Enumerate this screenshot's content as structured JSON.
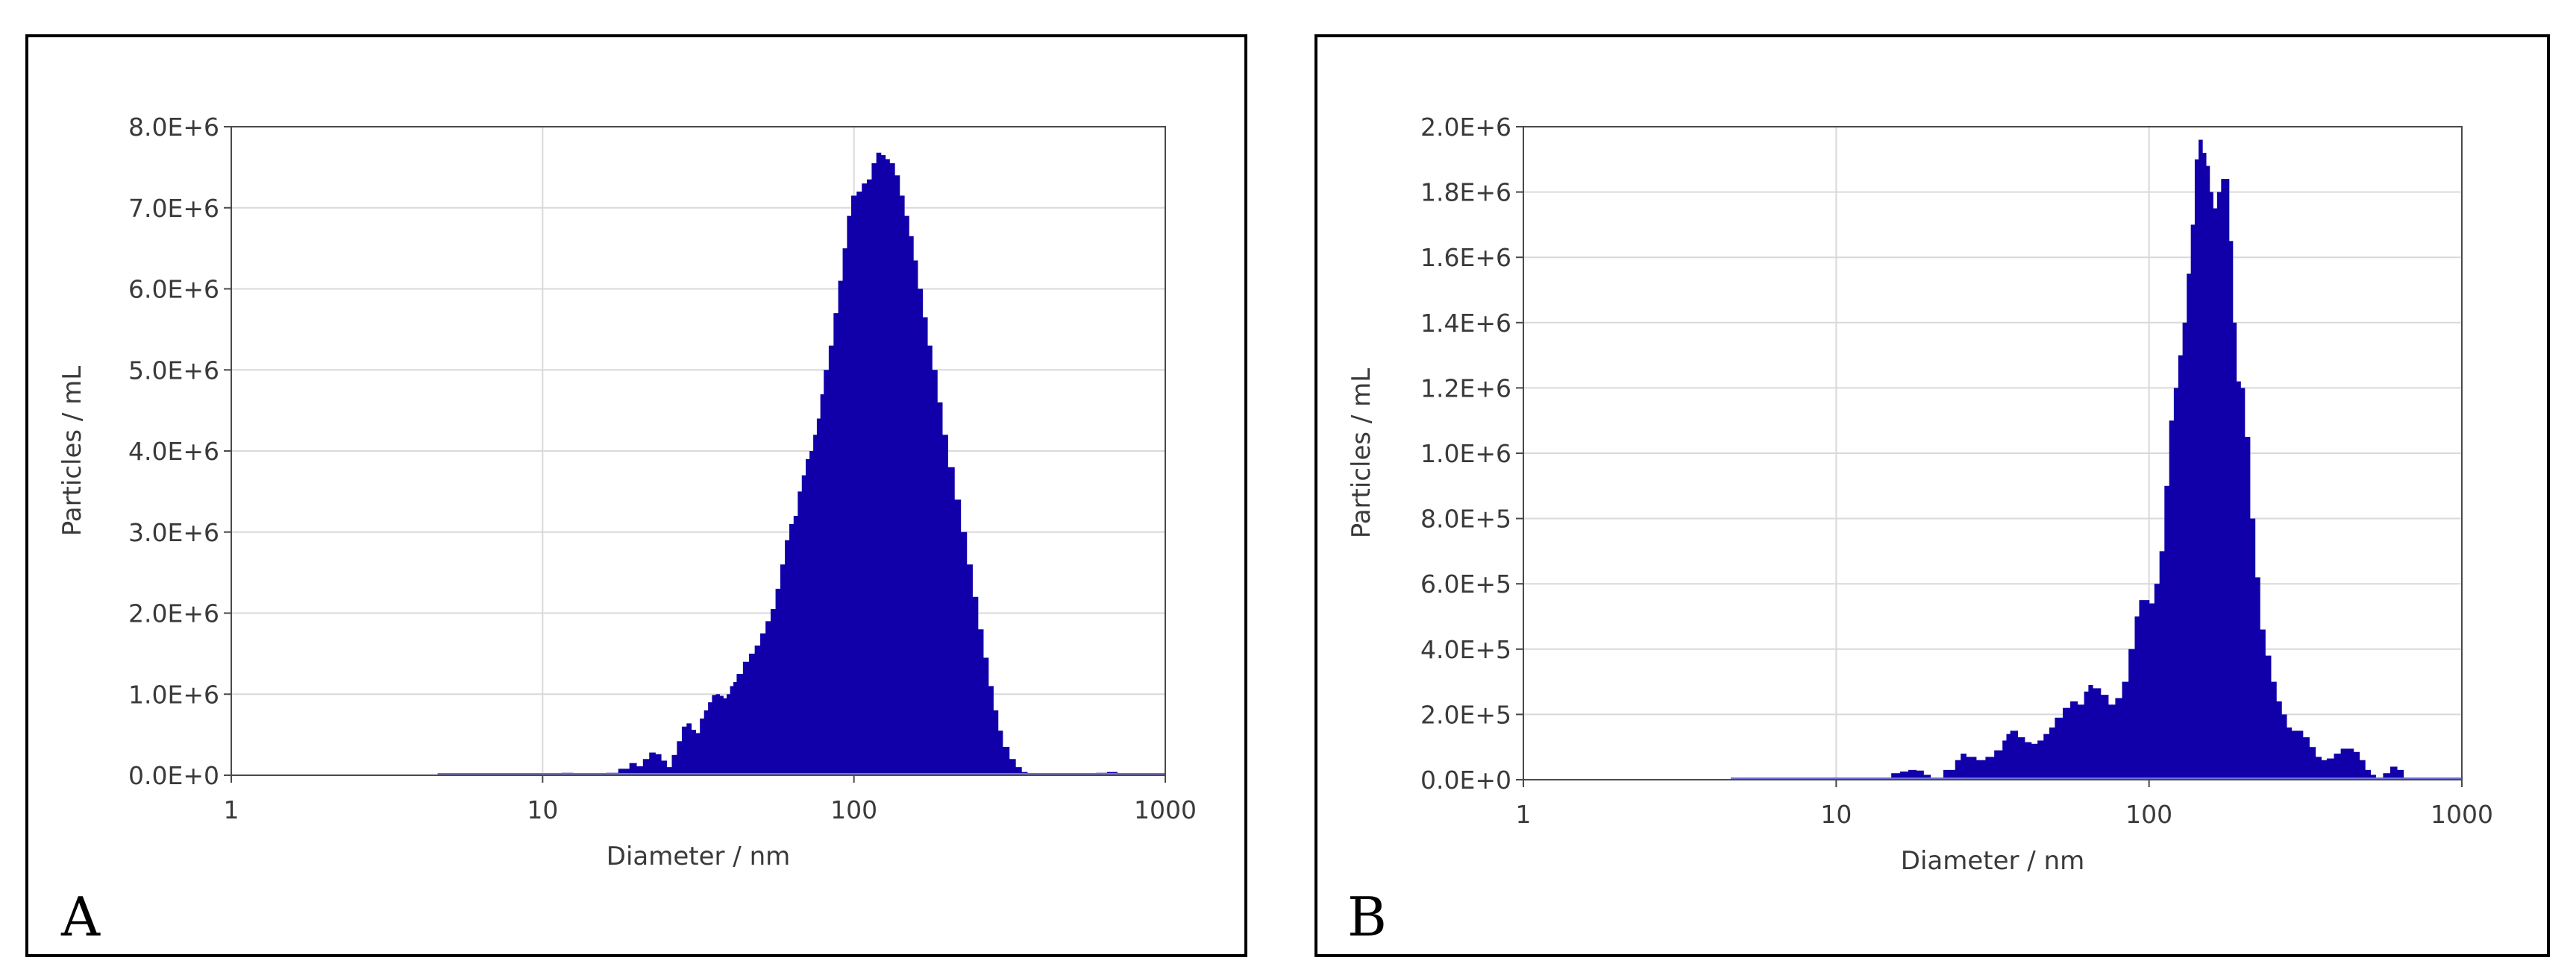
{
  "panels": [
    {
      "letter": "A"
    },
    {
      "letter": "B"
    }
  ],
  "colors": {
    "bar": "#1100aa",
    "baseline": "#6f6fd6",
    "ylabel": "#7a4a2a",
    "grid": "#d9d9d9"
  },
  "chart_data": [
    {
      "type": "bar",
      "title": "",
      "xlabel": "Diameter / nm",
      "ylabel": "Particles / mL",
      "xscale": "log",
      "xlim": [
        1,
        1000
      ],
      "ylim": [
        0,
        8000000
      ],
      "xticks": [
        "1",
        "10",
        "100",
        "1000"
      ],
      "yticks": [
        "0.0E+0",
        "1.0E+6",
        "2.0E+6",
        "3.0E+6",
        "4.0E+6",
        "5.0E+6",
        "6.0E+6",
        "7.0E+6",
        "8.0E+6"
      ],
      "grid": true,
      "baseline_range": [
        4.6,
        1000
      ],
      "series": [
        {
          "points": [
            [
              10.5,
              0
            ],
            [
              11.5,
              30000
            ],
            [
              12.5,
              15000
            ],
            [
              14,
              0
            ],
            [
              16,
              30000
            ],
            [
              17.5,
              80000
            ],
            [
              19,
              150000
            ],
            [
              20,
              110000
            ],
            [
              21,
              200000
            ],
            [
              22,
              280000
            ],
            [
              23,
              260000
            ],
            [
              24,
              180000
            ],
            [
              25,
              100000
            ],
            [
              26,
              250000
            ],
            [
              27,
              420000
            ],
            [
              28,
              600000
            ],
            [
              29,
              640000
            ],
            [
              30,
              560000
            ],
            [
              31,
              520000
            ],
            [
              32,
              700000
            ],
            [
              33,
              800000
            ],
            [
              34,
              900000
            ],
            [
              35,
              990000
            ],
            [
              36,
              1000000
            ],
            [
              37,
              980000
            ],
            [
              38,
              950000
            ],
            [
              39,
              1000000
            ],
            [
              40,
              1100000
            ],
            [
              41,
              1150000
            ],
            [
              42,
              1250000
            ],
            [
              44,
              1400000
            ],
            [
              46,
              1500000
            ],
            [
              48,
              1600000
            ],
            [
              50,
              1750000
            ],
            [
              52,
              1900000
            ],
            [
              54,
              2050000
            ],
            [
              56,
              2300000
            ],
            [
              58,
              2600000
            ],
            [
              60,
              2900000
            ],
            [
              62,
              3100000
            ],
            [
              64,
              3200000
            ],
            [
              66,
              3500000
            ],
            [
              68,
              3700000
            ],
            [
              70,
              3900000
            ],
            [
              72,
              4000000
            ],
            [
              74,
              4200000
            ],
            [
              76,
              4400000
            ],
            [
              78,
              4700000
            ],
            [
              80,
              5000000
            ],
            [
              83,
              5300000
            ],
            [
              86,
              5700000
            ],
            [
              89,
              6100000
            ],
            [
              92,
              6500000
            ],
            [
              95,
              6900000
            ],
            [
              98,
              7150000
            ],
            [
              102,
              7200000
            ],
            [
              106,
              7300000
            ],
            [
              110,
              7350000
            ],
            [
              114,
              7550000
            ],
            [
              118,
              7680000
            ],
            [
              122,
              7650000
            ],
            [
              126,
              7600000
            ],
            [
              130,
              7550000
            ],
            [
              135,
              7400000
            ],
            [
              140,
              7150000
            ],
            [
              145,
              6900000
            ],
            [
              150,
              6650000
            ],
            [
              155,
              6350000
            ],
            [
              160,
              6000000
            ],
            [
              166,
              5650000
            ],
            [
              172,
              5300000
            ],
            [
              178,
              5000000
            ],
            [
              185,
              4600000
            ],
            [
              192,
              4200000
            ],
            [
              200,
              3800000
            ],
            [
              210,
              3400000
            ],
            [
              220,
              3000000
            ],
            [
              230,
              2600000
            ],
            [
              240,
              2200000
            ],
            [
              250,
              1800000
            ],
            [
              260,
              1450000
            ],
            [
              270,
              1100000
            ],
            [
              280,
              800000
            ],
            [
              290,
              550000
            ],
            [
              300,
              350000
            ],
            [
              315,
              200000
            ],
            [
              330,
              100000
            ],
            [
              345,
              40000
            ],
            [
              360,
              0
            ],
            [
              600,
              30000
            ],
            [
              650,
              40000
            ],
            [
              700,
              20000
            ],
            [
              750,
              0
            ]
          ]
        }
      ]
    },
    {
      "type": "bar",
      "title": "",
      "xlabel": "Diameter / nm",
      "ylabel": "Particles / mL",
      "xscale": "log",
      "xlim": [
        1,
        1000
      ],
      "ylim": [
        0,
        2000000
      ],
      "xticks": [
        "1",
        "10",
        "100",
        "1000"
      ],
      "yticks": [
        "0.0E+0",
        "2.0E+5",
        "4.0E+5",
        "6.0E+5",
        "8.0E+5",
        "1.0E+6",
        "1.2E+6",
        "1.4E+6",
        "1.6E+6",
        "1.8E+6",
        "2.0E+6"
      ],
      "grid": true,
      "baseline_range": [
        4.6,
        1000
      ],
      "series": [
        {
          "points": [
            [
              14,
              0
            ],
            [
              15,
              20000
            ],
            [
              16,
              25000
            ],
            [
              17,
              30000
            ],
            [
              18,
              28000
            ],
            [
              19,
              15000
            ],
            [
              20,
              5000
            ],
            [
              21,
              0
            ],
            [
              22,
              30000
            ],
            [
              24,
              60000
            ],
            [
              25,
              80000
            ],
            [
              26,
              70000
            ],
            [
              28,
              60000
            ],
            [
              30,
              70000
            ],
            [
              32,
              90000
            ],
            [
              34,
              120000
            ],
            [
              35,
              140000
            ],
            [
              36,
              150000
            ],
            [
              38,
              130000
            ],
            [
              40,
              115000
            ],
            [
              42,
              110000
            ],
            [
              44,
              120000
            ],
            [
              46,
              140000
            ],
            [
              48,
              160000
            ],
            [
              50,
              190000
            ],
            [
              53,
              220000
            ],
            [
              56,
              240000
            ],
            [
              59,
              230000
            ],
            [
              62,
              270000
            ],
            [
              64,
              290000
            ],
            [
              66,
              280000
            ],
            [
              70,
              260000
            ],
            [
              74,
              230000
            ],
            [
              78,
              250000
            ],
            [
              82,
              300000
            ],
            [
              86,
              400000
            ],
            [
              90,
              500000
            ],
            [
              93,
              550000
            ],
            [
              96,
              550000
            ],
            [
              100,
              540000
            ],
            [
              104,
              600000
            ],
            [
              108,
              700000
            ],
            [
              112,
              900000
            ],
            [
              116,
              1100000
            ],
            [
              120,
              1200000
            ],
            [
              124,
              1300000
            ],
            [
              128,
              1400000
            ],
            [
              132,
              1550000
            ],
            [
              136,
              1700000
            ],
            [
              140,
              1900000
            ],
            [
              144,
              1960000
            ],
            [
              148,
              1920000
            ],
            [
              152,
              1880000
            ],
            [
              156,
              1800000
            ],
            [
              160,
              1750000
            ],
            [
              165,
              1800000
            ],
            [
              170,
              1840000
            ],
            [
              175,
              1840000
            ],
            [
              180,
              1650000
            ],
            [
              185,
              1400000
            ],
            [
              190,
              1220000
            ],
            [
              196,
              1200000
            ],
            [
              202,
              1050000
            ],
            [
              210,
              800000
            ],
            [
              218,
              620000
            ],
            [
              226,
              460000
            ],
            [
              235,
              380000
            ],
            [
              245,
              300000
            ],
            [
              255,
              240000
            ],
            [
              265,
              200000
            ],
            [
              275,
              160000
            ],
            [
              285,
              150000
            ],
            [
              295,
              150000
            ],
            [
              310,
              130000
            ],
            [
              325,
              100000
            ],
            [
              340,
              70000
            ],
            [
              355,
              60000
            ],
            [
              370,
              65000
            ],
            [
              390,
              80000
            ],
            [
              410,
              95000
            ],
            [
              430,
              95000
            ],
            [
              450,
              85000
            ],
            [
              470,
              60000
            ],
            [
              490,
              30000
            ],
            [
              510,
              15000
            ],
            [
              530,
              0
            ],
            [
              560,
              20000
            ],
            [
              590,
              40000
            ],
            [
              620,
              30000
            ],
            [
              650,
              0
            ]
          ]
        }
      ]
    }
  ]
}
